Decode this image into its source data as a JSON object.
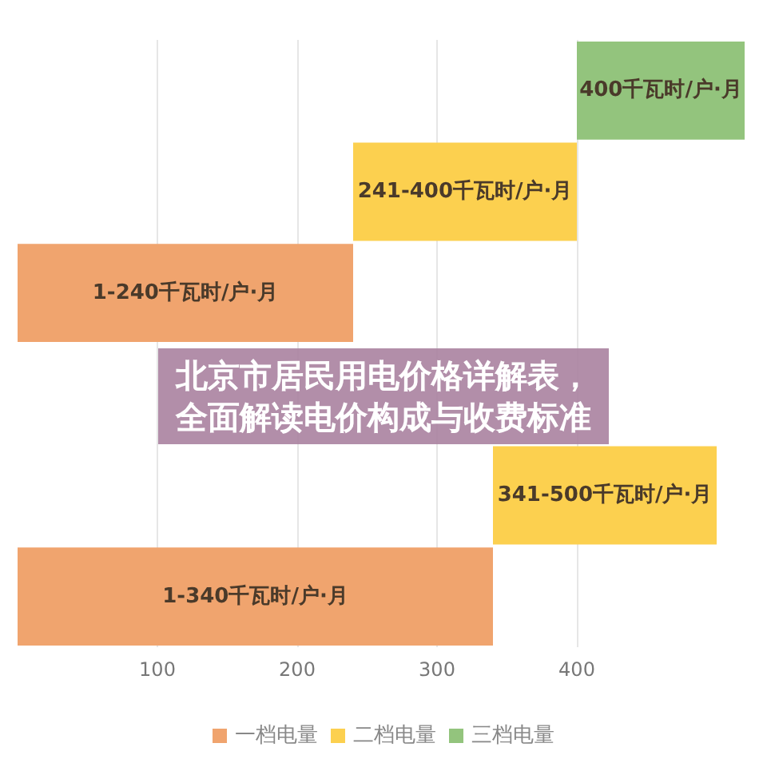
{
  "chart_data": {
    "type": "bar",
    "orientation": "horizontal",
    "title": "北京市居民用电价格详解表，全面解读电价构成与收费标准",
    "categories": [
      null,
      null,
      null,
      null,
      null,
      null
    ],
    "series": [
      {
        "name": "一档电量",
        "color": "#f0a46e",
        "values": [
          null,
          null,
          240,
          null,
          null,
          340
        ],
        "base": [
          null,
          null,
          0,
          null,
          null,
          0
        ]
      },
      {
        "name": "二档电量",
        "color": "#fcd04f",
        "values": [
          null,
          160,
          null,
          null,
          160,
          null
        ],
        "base": [
          null,
          240,
          null,
          null,
          340,
          null
        ]
      },
      {
        "name": "三档电量",
        "color": "#93c47d",
        "values": [
          120,
          null,
          null,
          null,
          null,
          null
        ],
        "base": [
          400,
          null,
          null,
          null,
          null,
          null
        ]
      }
    ],
    "annotations": [
      "400千瓦时/户·月",
      "241-400千瓦时/户·月",
      "1-240千瓦时/户·月",
      "341-500千瓦时/户·月",
      "1-340千瓦时/户·月"
    ],
    "xlim": [
      0,
      520
    ],
    "xticks": [
      100,
      200,
      300,
      400
    ],
    "grid": "x",
    "legend": "bottom"
  }
}
